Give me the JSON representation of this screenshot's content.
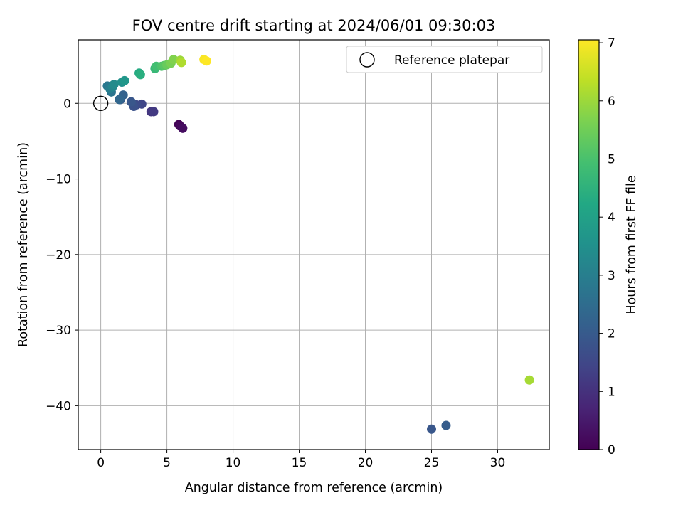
{
  "chart_data": {
    "type": "scatter",
    "title": "FOV centre drift starting at 2024/06/01 09:30:03",
    "xlabel": "Angular distance from reference (arcmin)",
    "ylabel": "Rotation from reference (arcmin)",
    "xlim": [
      -1.7,
      33.9
    ],
    "ylim": [
      -45.8,
      8.4
    ],
    "xticks": [
      0,
      5,
      10,
      15,
      20,
      25,
      30
    ],
    "yticks": [
      0,
      -10,
      -20,
      -30,
      -40
    ],
    "grid": true,
    "legend": {
      "position": "top-right",
      "entries": [
        "Reference platepar"
      ]
    },
    "reference_point": {
      "x": 0,
      "y": 0
    },
    "colorbar": {
      "label": "Hours from first FF file",
      "range": [
        0,
        7.05
      ],
      "ticks": [
        0,
        1,
        2,
        3,
        4,
        5,
        6,
        7
      ],
      "colormap": "viridis"
    },
    "points": [
      {
        "x": 5.9,
        "y": -2.8,
        "h": 0.05
      },
      {
        "x": 6.0,
        "y": -3.0,
        "h": 0.15
      },
      {
        "x": 6.2,
        "y": -3.3,
        "h": 0.25
      },
      {
        "x": 3.8,
        "y": -1.1,
        "h": 1.1
      },
      {
        "x": 4.0,
        "y": -1.1,
        "h": 1.2
      },
      {
        "x": 3.1,
        "y": -0.1,
        "h": 1.45
      },
      {
        "x": 2.7,
        "y": -0.2,
        "h": 1.6
      },
      {
        "x": 2.5,
        "y": -0.4,
        "h": 1.75
      },
      {
        "x": 2.3,
        "y": 0.2,
        "h": 1.9
      },
      {
        "x": 1.5,
        "y": 0.5,
        "h": 2.0
      },
      {
        "x": 1.7,
        "y": 1.1,
        "h": 2.2
      },
      {
        "x": 1.4,
        "y": 0.5,
        "h": 2.3
      },
      {
        "x": 25.0,
        "y": -43.1,
        "h": 1.9
      },
      {
        "x": 26.1,
        "y": -42.6,
        "h": 2.05
      },
      {
        "x": 0.8,
        "y": 1.5,
        "h": 2.7
      },
      {
        "x": 0.5,
        "y": 2.3,
        "h": 2.8
      },
      {
        "x": 0.7,
        "y": 1.9,
        "h": 3.0
      },
      {
        "x": 0.9,
        "y": 2.2,
        "h": 3.2
      },
      {
        "x": 1.0,
        "y": 2.5,
        "h": 3.35
      },
      {
        "x": 1.6,
        "y": 2.8,
        "h": 3.5
      },
      {
        "x": 1.8,
        "y": 3.0,
        "h": 3.7
      },
      {
        "x": 2.9,
        "y": 4.0,
        "h": 4.3
      },
      {
        "x": 3.0,
        "y": 3.8,
        "h": 4.4
      },
      {
        "x": 4.1,
        "y": 4.6,
        "h": 4.7
      },
      {
        "x": 4.2,
        "y": 4.9,
        "h": 4.9
      },
      {
        "x": 4.6,
        "y": 4.9,
        "h": 5.05
      },
      {
        "x": 4.8,
        "y": 5.0,
        "h": 5.2
      },
      {
        "x": 5.0,
        "y": 5.1,
        "h": 5.4
      },
      {
        "x": 5.3,
        "y": 5.3,
        "h": 5.6
      },
      {
        "x": 5.5,
        "y": 5.8,
        "h": 5.7
      },
      {
        "x": 6.0,
        "y": 5.7,
        "h": 6.0
      },
      {
        "x": 6.1,
        "y": 5.4,
        "h": 6.2
      },
      {
        "x": 32.4,
        "y": -36.6,
        "h": 6.1
      },
      {
        "x": 7.8,
        "y": 5.8,
        "h": 7.0
      },
      {
        "x": 8.0,
        "y": 5.6,
        "h": 7.05
      }
    ]
  }
}
